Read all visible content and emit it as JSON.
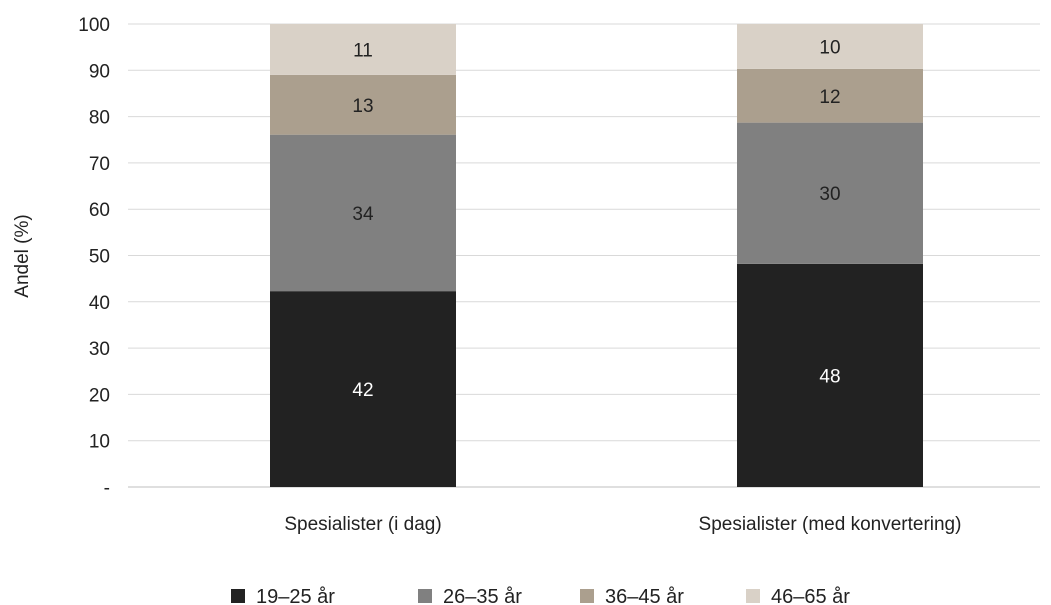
{
  "chart_data": {
    "type": "bar",
    "stacked": true,
    "title": "",
    "xlabel": "",
    "ylabel": "Andel (%)",
    "ylim": [
      0,
      100
    ],
    "yticks": [
      {
        "value": 0,
        "label": "-"
      },
      {
        "value": 10,
        "label": "10"
      },
      {
        "value": 20,
        "label": "20"
      },
      {
        "value": 30,
        "label": "30"
      },
      {
        "value": 40,
        "label": "40"
      },
      {
        "value": 50,
        "label": "50"
      },
      {
        "value": 60,
        "label": "60"
      },
      {
        "value": 70,
        "label": "70"
      },
      {
        "value": 80,
        "label": "80"
      },
      {
        "value": 90,
        "label": "90"
      },
      {
        "value": 100,
        "label": "100"
      }
    ],
    "grid": true,
    "legend_position": "bottom",
    "categories": [
      "Spesialister (i dag)",
      "Spesialister (med konvertering)"
    ],
    "series": [
      {
        "name": "19–25 år",
        "color": "#222222",
        "label_color": "#ffffff",
        "values": [
          42.3,
          48.2
        ],
        "labels": [
          "42",
          "48"
        ]
      },
      {
        "name": "26–35 år",
        "color": "#808080",
        "label_color": "#222222",
        "values": [
          33.8,
          30.5
        ],
        "labels": [
          "34",
          "30"
        ]
      },
      {
        "name": "36–45 år",
        "color": "#ab9f8e",
        "label_color": "#222222",
        "values": [
          12.9,
          11.6
        ],
        "labels": [
          "13",
          "12"
        ]
      },
      {
        "name": "46–65 år",
        "color": "#d9d1c7",
        "label_color": "#222222",
        "values": [
          11.0,
          9.7
        ],
        "labels": [
          "11",
          "10"
        ]
      }
    ]
  }
}
